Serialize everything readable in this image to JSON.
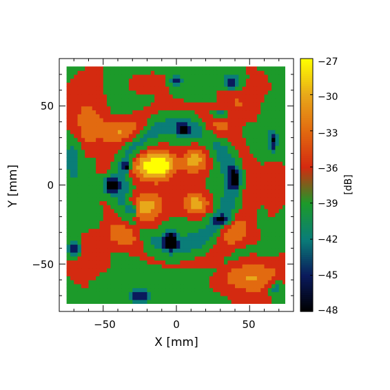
{
  "chart_data": {
    "type": "heatmap",
    "title": "",
    "xlabel": "X [mm]",
    "ylabel": "Y [mm]",
    "xlim": [
      -80,
      80
    ],
    "ylim": [
      -80,
      80
    ],
    "x_ticks": [
      -50,
      0,
      50
    ],
    "y_ticks": [
      -50,
      0,
      50
    ],
    "x_tick_labels": [
      "−50",
      "0",
      "50"
    ],
    "y_tick_labels": [
      "−50",
      "0",
      "50"
    ],
    "data_extent": [
      -75,
      75
    ],
    "grid": false,
    "colorbar": {
      "label": "[dB]",
      "range": [
        -48,
        -27
      ],
      "ticks": [
        -27,
        -30,
        -33,
        -36,
        -39,
        -42,
        -45,
        -48
      ],
      "tick_labels": [
        "−27",
        "−30",
        "−33",
        "−36",
        "−39",
        "−42",
        "−45",
        "−48"
      ],
      "levels": [
        -48,
        -45,
        -42,
        -39,
        -36,
        -33,
        -30,
        -27
      ],
      "level_colors": [
        "#000000",
        "#0a1a5c",
        "#0a7d78",
        "#1c9a2a",
        "#d42a10",
        "#e26a10",
        "#e8a81a",
        "#ffff00"
      ]
    },
    "field_model": {
      "background_db": -36.5,
      "features": [
        {
          "kind": "blob",
          "x": -22,
          "y": 12,
          "db": -27.5,
          "sx": 12,
          "sy": 9
        },
        {
          "kind": "blob",
          "x": -10,
          "y": 14,
          "db": -27.5,
          "sx": 9,
          "sy": 9
        },
        {
          "kind": "blob",
          "x": -22,
          "y": -14,
          "db": -27.5,
          "sx": 12,
          "sy": 9
        },
        {
          "kind": "blob",
          "x": 13,
          "y": 16,
          "db": -28.5,
          "sx": 9,
          "sy": 8
        },
        {
          "kind": "blob",
          "x": 14,
          "y": -12,
          "db": -28.5,
          "sx": 9,
          "sy": 7
        },
        {
          "kind": "blob",
          "x": -38,
          "y": 35,
          "db": -30.5,
          "sx": 18,
          "sy": 8
        },
        {
          "kind": "blob",
          "x": -60,
          "y": 38,
          "db": -31,
          "sx": 12,
          "sy": 20
        },
        {
          "kind": "blob",
          "x": -32,
          "y": -30,
          "db": -30.5,
          "sx": 16,
          "sy": 8
        },
        {
          "kind": "blob",
          "x": -55,
          "y": -42,
          "db": -32.5,
          "sx": 12,
          "sy": 12
        },
        {
          "kind": "blob",
          "x": 50,
          "y": -58,
          "db": -29.5,
          "sx": 22,
          "sy": 10
        },
        {
          "kind": "blob",
          "x": 40,
          "y": -30,
          "db": -31,
          "sx": 14,
          "sy": 9
        },
        {
          "kind": "blob",
          "x": 40,
          "y": 50,
          "db": -32,
          "sx": 14,
          "sy": 14
        },
        {
          "kind": "blob",
          "x": 62,
          "y": 0,
          "db": -33.5,
          "sx": 14,
          "sy": 20
        },
        {
          "kind": "blob",
          "x": -15,
          "y": 63,
          "db": -33.5,
          "sx": 18,
          "sy": 8
        },
        {
          "kind": "blob",
          "x": 25,
          "y": 35,
          "db": -33,
          "sx": 10,
          "sy": 10
        },
        {
          "kind": "ring",
          "r": 38,
          "w": 6,
          "db": -41
        },
        {
          "kind": "ring",
          "r": 60,
          "w": 5,
          "db": -38
        },
        {
          "kind": "blob",
          "x": -70,
          "y": 18,
          "db": -41,
          "sx": 6,
          "sy": 16
        },
        {
          "kind": "blob",
          "x": -70,
          "y": -40,
          "db": -47,
          "sx": 4,
          "sy": 4
        },
        {
          "kind": "blob",
          "x": -45,
          "y": 0,
          "db": -47,
          "sx": 5,
          "sy": 5
        },
        {
          "kind": "blob",
          "x": -34,
          "y": 12,
          "db": -45,
          "sx": 3,
          "sy": 3
        },
        {
          "kind": "blob",
          "x": -30,
          "y": -15,
          "db": -45,
          "sx": 3,
          "sy": 3
        },
        {
          "kind": "blob",
          "x": -4,
          "y": -35,
          "db": -47,
          "sx": 4,
          "sy": 6
        },
        {
          "kind": "blob",
          "x": 40,
          "y": 5,
          "db": -46,
          "sx": 4,
          "sy": 6
        },
        {
          "kind": "blob",
          "x": 30,
          "y": -22,
          "db": -44,
          "sx": 6,
          "sy": 3
        },
        {
          "kind": "blob",
          "x": 38,
          "y": 65,
          "db": -45,
          "sx": 6,
          "sy": 5
        },
        {
          "kind": "blob",
          "x": 5,
          "y": 35,
          "db": -45,
          "sx": 4,
          "sy": 4
        },
        {
          "kind": "blob",
          "x": 30,
          "y": 45,
          "db": -44,
          "sx": 6,
          "sy": 3
        },
        {
          "kind": "blob",
          "x": 66,
          "y": 28,
          "db": -45,
          "sx": 3,
          "sy": 7
        },
        {
          "kind": "blob",
          "x": -25,
          "y": -70,
          "db": -45,
          "sx": 6,
          "sy": 4
        },
        {
          "kind": "blob",
          "x": 68,
          "y": -65,
          "db": -43,
          "sx": 5,
          "sy": 5
        },
        {
          "kind": "blob",
          "x": 0,
          "y": 66,
          "db": -44,
          "sx": 5,
          "sy": 3
        }
      ]
    }
  }
}
